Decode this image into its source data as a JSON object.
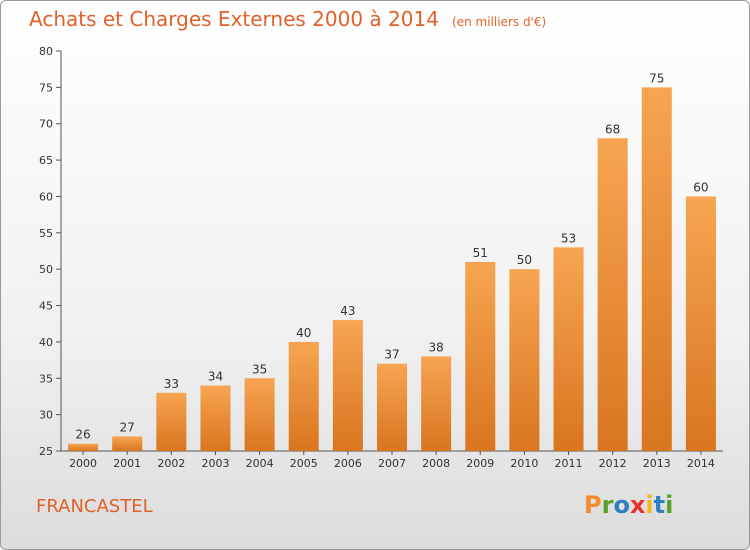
{
  "header": {
    "title": "Achats et Charges Externes 2000 à 2014",
    "subtitle": "(en milliers d'€)"
  },
  "footer": {
    "commune": "FRANCASTEL",
    "logo": [
      "P",
      "r",
      "o",
      "x",
      "i",
      "t",
      "i"
    ]
  },
  "colors": {
    "bar_top": "#f7a552",
    "bar_bottom": "#d9751f",
    "title": "#e0612a",
    "logo": [
      "#f28a2e",
      "#5aa02c",
      "#2f7fc1",
      "#e8352b",
      "#f2b81d",
      "#2f7fc1",
      "#5aa02c"
    ]
  },
  "chart_data": {
    "type": "bar",
    "categories": [
      "2000",
      "2001",
      "2002",
      "2003",
      "2004",
      "2005",
      "2006",
      "2007",
      "2008",
      "2009",
      "2010",
      "2011",
      "2012",
      "2013",
      "2014"
    ],
    "values": [
      26,
      27,
      33,
      34,
      35,
      40,
      43,
      37,
      38,
      51,
      50,
      53,
      68,
      75,
      60
    ],
    "ylim": [
      25,
      80
    ],
    "yticks": [
      25,
      30,
      35,
      40,
      45,
      50,
      55,
      60,
      65,
      70,
      75,
      80
    ],
    "grid": false,
    "data_labels": true
  }
}
